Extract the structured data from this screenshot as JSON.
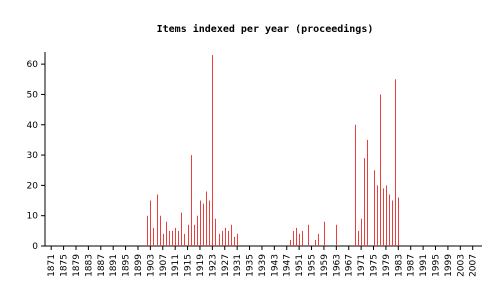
{
  "chart_data": {
    "type": "bar",
    "title": "Items indexed per year (proceedings)",
    "x": [
      1902,
      1903,
      1904,
      1905,
      1906,
      1907,
      1908,
      1909,
      1910,
      1911,
      1912,
      1913,
      1914,
      1915,
      1916,
      1917,
      1918,
      1919,
      1920,
      1921,
      1922,
      1923,
      1924,
      1925,
      1926,
      1927,
      1928,
      1929,
      1930,
      1931,
      1948,
      1949,
      1950,
      1951,
      1952,
      1954,
      1956,
      1957,
      1959,
      1963,
      1969,
      1970,
      1971,
      1972,
      1973,
      1975,
      1976,
      1977,
      1978,
      1979,
      1980,
      1981,
      1982,
      1983
    ],
    "values": [
      10,
      15,
      6,
      17,
      10,
      4,
      8,
      5,
      5,
      6,
      5,
      11,
      4,
      7,
      30,
      7,
      10,
      15,
      14,
      18,
      15,
      63,
      9,
      4,
      5,
      6,
      5,
      7,
      3,
      4,
      2,
      5,
      6,
      4,
      5,
      7,
      2,
      4,
      8,
      7,
      40,
      5,
      9,
      29,
      35,
      25,
      20,
      50,
      19,
      20,
      17,
      15,
      55,
      16
    ],
    "color": "#e8403f",
    "xlim": [
      1869,
      2010
    ],
    "xticks": [
      1871,
      1875,
      1879,
      1883,
      1887,
      1891,
      1895,
      1899,
      1903,
      1907,
      1911,
      1915,
      1919,
      1923,
      1927,
      1931,
      1935,
      1939,
      1943,
      1947,
      1951,
      1955,
      1959,
      1963,
      1967,
      1971,
      1975,
      1979,
      1983,
      1987,
      1991,
      1995,
      1999,
      2003,
      2007
    ],
    "ylim": [
      0,
      64
    ],
    "yticks": [
      0,
      10,
      20,
      30,
      40,
      50,
      60
    ]
  }
}
